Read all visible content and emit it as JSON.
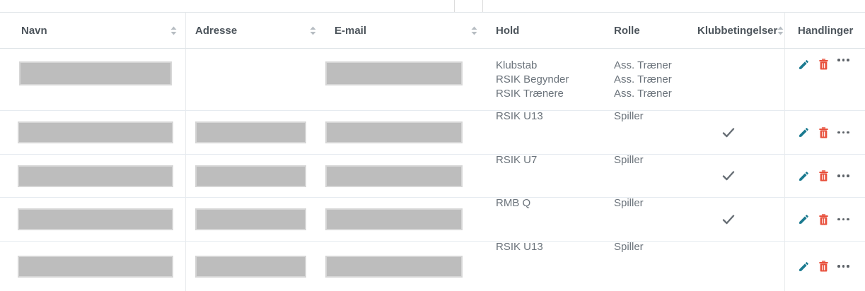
{
  "table": {
    "columns": [
      {
        "label": "Navn",
        "sortable": true
      },
      {
        "label": "Adresse",
        "sortable": true
      },
      {
        "label": "E-mail",
        "sortable": true
      },
      {
        "label": "Hold",
        "sortable": false
      },
      {
        "label": "Rolle",
        "sortable": false
      },
      {
        "label": "Klubbetingelser",
        "sortable": true
      },
      {
        "label": "Handlinger",
        "sortable": false
      }
    ],
    "rows": [
      {
        "navn_redacted": true,
        "adresse_redacted": false,
        "email_redacted": true,
        "hold": [
          "Klubstab",
          "RSIK Begynder",
          "RSIK Trænere"
        ],
        "rolle": [
          "Ass. Træner",
          "Ass. Træner",
          "Ass. Træner"
        ],
        "klubbetingelser_accepted": false
      },
      {
        "navn_redacted": true,
        "adresse_redacted": true,
        "email_redacted": true,
        "hold": [
          "RSIK U13"
        ],
        "rolle": [
          "Spiller"
        ],
        "klubbetingelser_accepted": true
      },
      {
        "navn_redacted": true,
        "adresse_redacted": true,
        "email_redacted": true,
        "hold": [
          "RSIK U7"
        ],
        "rolle": [
          "Spiller"
        ],
        "klubbetingelser_accepted": true
      },
      {
        "navn_redacted": true,
        "adresse_redacted": true,
        "email_redacted": true,
        "hold": [
          "RMB Q"
        ],
        "rolle": [
          "Spiller"
        ],
        "klubbetingelser_accepted": true
      },
      {
        "navn_redacted": true,
        "adresse_redacted": true,
        "email_redacted": true,
        "hold": [
          "RSIK U13"
        ],
        "rolle": [
          "Spiller"
        ],
        "klubbetingelser_accepted": false
      }
    ],
    "icons": {
      "sort": "sort-icon",
      "check": "check-icon",
      "edit": "pencil-icon",
      "delete": "trash-icon",
      "more": "ellipsis-icon"
    },
    "colors": {
      "edit_icon": "#1b7a90",
      "delete_icon": "#e8503c",
      "check_icon": "#676e75",
      "sort_icon": "#b6bcc2",
      "header_text": "#4d555c",
      "body_text": "#6b737b",
      "redaction_block": "#bdbdbd",
      "row_border": "#e6ebf0"
    }
  }
}
